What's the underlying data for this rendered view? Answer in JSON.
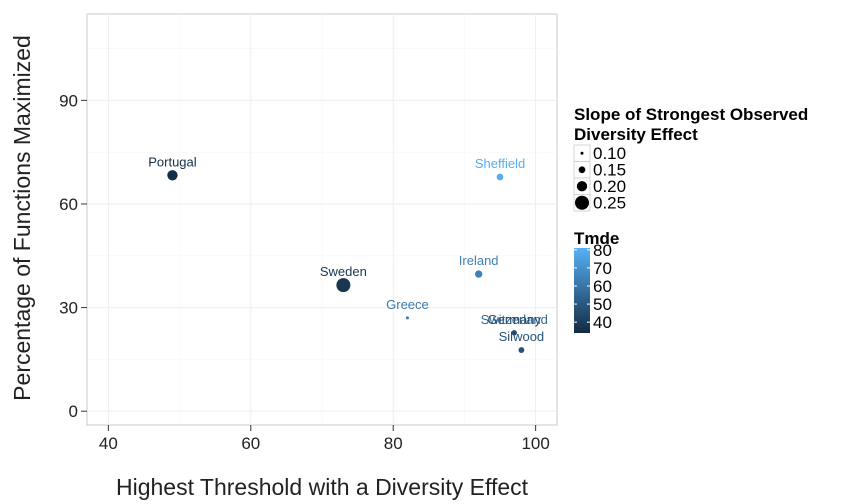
{
  "chart_data": {
    "type": "scatter",
    "xlabel": "Highest Threshold with a Diversity Effect",
    "ylabel": "Percentage of Functions Maximized",
    "xlim": [
      37,
      103
    ],
    "ylim": [
      -4,
      115
    ],
    "xticks": [
      40,
      60,
      80,
      100
    ],
    "yticks": [
      0,
      30,
      60,
      90
    ],
    "grid": true,
    "legend_position": "right",
    "points": [
      {
        "label": "Portugal",
        "x": 49,
        "y": 68.3,
        "slope": 0.2,
        "tmde": 35
      },
      {
        "label": "Sheffield",
        "x": 95,
        "y": 67.8,
        "slope": 0.15,
        "tmde": 80
      },
      {
        "label": "Ireland",
        "x": 92,
        "y": 39.7,
        "slope": 0.16,
        "tmde": 64
      },
      {
        "label": "Sweden",
        "x": 73,
        "y": 36.5,
        "slope": 0.25,
        "tmde": 38
      },
      {
        "label": "Greece",
        "x": 82,
        "y": 27.0,
        "slope": 0.1,
        "tmde": 62
      },
      {
        "label": "Switzerland",
        "x": 97,
        "y": 22.7,
        "slope": 0.13,
        "tmde": 56
      },
      {
        "label": "Germany",
        "x": 97,
        "y": 22.7,
        "slope": 0.13,
        "tmde": 45
      },
      {
        "label": "Silwood",
        "x": 98,
        "y": 17.7,
        "slope": 0.14,
        "tmde": 48
      }
    ],
    "size_legend": {
      "title": [
        "Slope of Strongest Observed",
        "Diversity Effect"
      ],
      "values": [
        0.1,
        0.15,
        0.2,
        0.25
      ],
      "labels": [
        "0.10",
        "0.15",
        "0.20",
        "0.25"
      ]
    },
    "color_legend": {
      "title": "Tmde",
      "range": [
        34,
        81
      ],
      "ticks": [
        40,
        50,
        60,
        70,
        80
      ],
      "tick_labels": [
        "40",
        "50",
        "60",
        "70",
        "80"
      ],
      "low_color": "#132b43",
      "high_color": "#56b1f7"
    }
  }
}
